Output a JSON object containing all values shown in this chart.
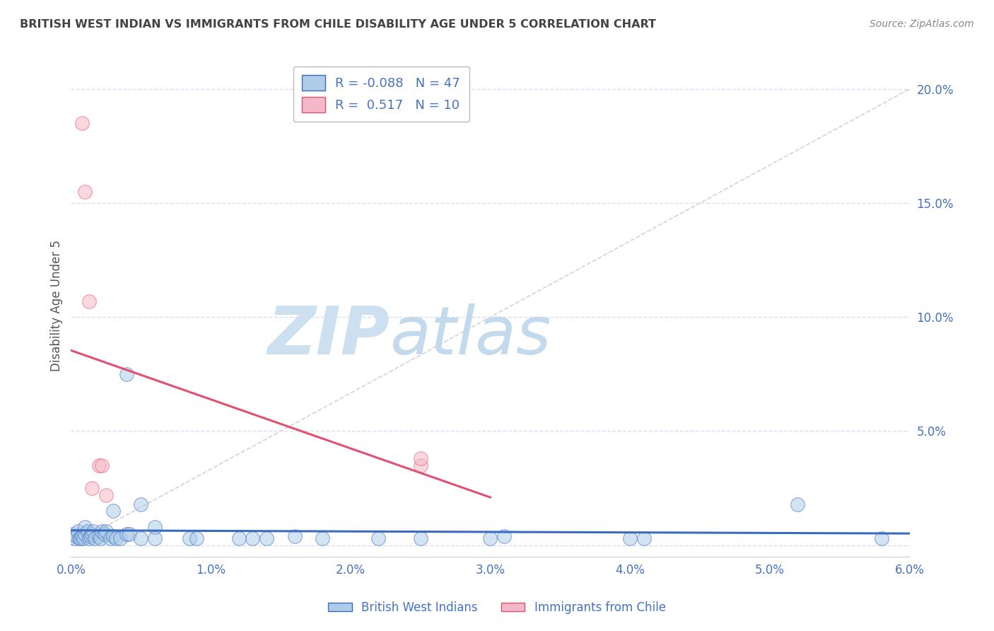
{
  "title": "BRITISH WEST INDIAN VS IMMIGRANTS FROM CHILE DISABILITY AGE UNDER 5 CORRELATION CHART",
  "source": "Source: ZipAtlas.com",
  "ylabel": "Disability Age Under 5",
  "xmin": 0.0,
  "xmax": 0.06,
  "ymin": -0.005,
  "ymax": 0.215,
  "yticks": [
    0.0,
    0.05,
    0.1,
    0.15,
    0.2
  ],
  "ytick_labels": [
    "",
    "5.0%",
    "10.0%",
    "15.0%",
    "20.0%"
  ],
  "xtick_labels": [
    "0.0%",
    "1.0%",
    "2.0%",
    "3.0%",
    "4.0%",
    "5.0%",
    "6.0%"
  ],
  "xticks": [
    0.0,
    0.01,
    0.02,
    0.03,
    0.04,
    0.05,
    0.06
  ],
  "blue_scatter_x": [
    0.0002,
    0.0003,
    0.0004,
    0.0005,
    0.0006,
    0.0007,
    0.0008,
    0.0009,
    0.001,
    0.001,
    0.0012,
    0.0013,
    0.0014,
    0.0015,
    0.0016,
    0.0017,
    0.002,
    0.0021,
    0.0022,
    0.0024,
    0.0025,
    0.0028,
    0.003,
    0.003,
    0.0032,
    0.0035,
    0.004,
    0.004,
    0.0042,
    0.005,
    0.005,
    0.006,
    0.006,
    0.0085,
    0.009,
    0.012,
    0.013,
    0.014,
    0.016,
    0.018,
    0.022,
    0.025,
    0.03,
    0.031,
    0.04,
    0.041,
    0.052,
    0.058
  ],
  "blue_scatter_y": [
    0.005,
    0.003,
    0.004,
    0.006,
    0.003,
    0.003,
    0.004,
    0.003,
    0.005,
    0.008,
    0.006,
    0.003,
    0.004,
    0.005,
    0.006,
    0.003,
    0.004,
    0.003,
    0.006,
    0.005,
    0.006,
    0.003,
    0.004,
    0.015,
    0.003,
    0.003,
    0.075,
    0.005,
    0.005,
    0.003,
    0.018,
    0.003,
    0.008,
    0.003,
    0.003,
    0.003,
    0.003,
    0.003,
    0.004,
    0.003,
    0.003,
    0.003,
    0.003,
    0.004,
    0.003,
    0.003,
    0.018,
    0.003
  ],
  "pink_scatter_x": [
    0.0008,
    0.001,
    0.0013,
    0.0015,
    0.002,
    0.0022,
    0.0025,
    0.025,
    0.025
  ],
  "pink_scatter_y": [
    0.185,
    0.155,
    0.107,
    0.025,
    0.035,
    0.035,
    0.022,
    0.035,
    0.038
  ],
  "blue_r": -0.088,
  "blue_n": 47,
  "pink_r": 0.517,
  "pink_n": 10,
  "blue_color": "#aecce8",
  "pink_color": "#f5b8c8",
  "blue_line_color": "#3b6bbf",
  "pink_line_color": "#e05070",
  "diag_color": "#c8c8c8",
  "legend_r_color": "#4472c4",
  "watermark_zip_color": "#cce0f0",
  "watermark_atlas_color": "#b8d4e8",
  "background_color": "#ffffff",
  "grid_color": "#d8dff0"
}
